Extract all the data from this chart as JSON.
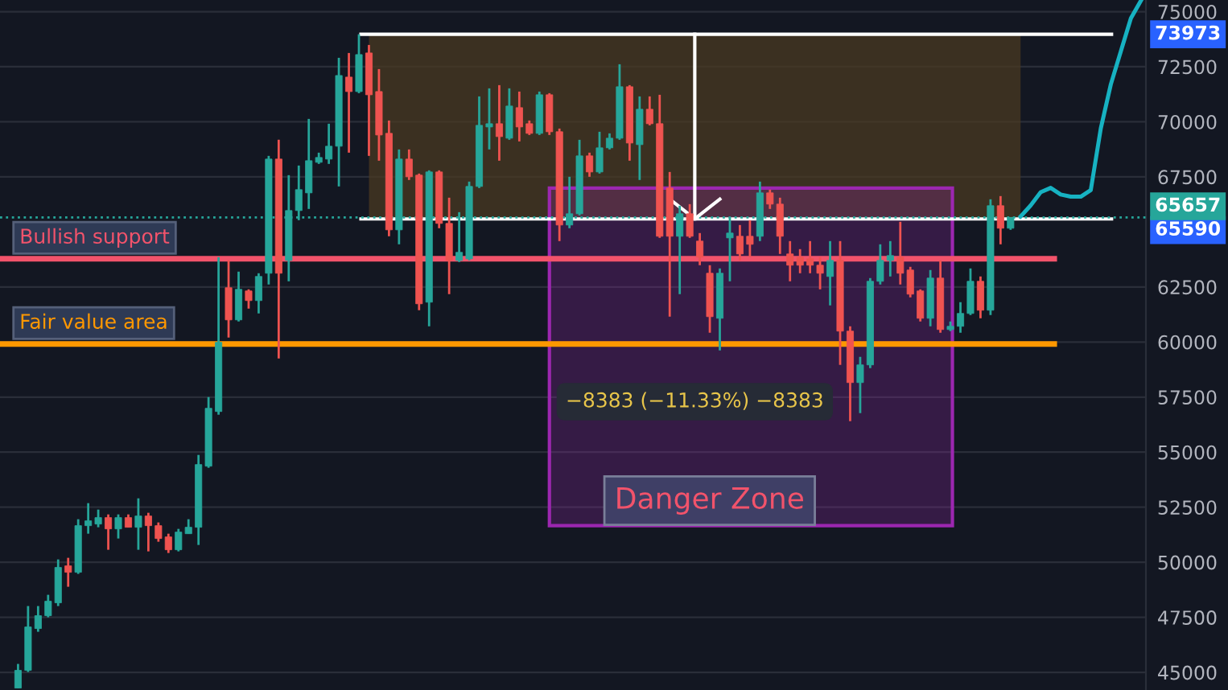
{
  "chart_data": {
    "type": "candlestick",
    "categories": [
      null,
      null,
      null,
      null,
      null,
      null,
      null,
      null,
      null,
      null,
      null,
      null,
      null,
      null,
      null,
      null,
      null,
      null,
      null,
      null,
      null,
      null,
      null,
      null,
      null,
      null,
      null,
      null,
      null,
      null,
      null,
      null,
      null,
      null,
      null,
      null,
      null,
      null,
      null,
      null,
      null,
      null,
      null,
      null,
      null,
      null,
      null,
      null,
      null,
      null,
      null,
      null,
      null,
      null,
      null,
      null,
      null,
      null,
      null,
      null,
      null,
      null,
      null,
      null,
      null,
      null,
      null,
      null,
      null,
      null,
      null,
      null,
      null,
      null,
      null,
      null,
      null,
      null,
      null,
      null,
      null,
      null,
      null,
      null,
      null,
      null,
      null,
      null,
      null,
      null,
      null,
      null,
      null,
      null,
      null,
      null,
      null,
      null,
      null,
      null,
      null,
      null,
      null,
      null,
      null,
      null,
      null,
      null,
      null,
      null,
      null,
      null,
      null
    ],
    "ohlc": [
      [
        44289,
        45384,
        44289,
        45092
      ],
      [
        45092,
        48012,
        45019,
        47063
      ],
      [
        46990,
        48012,
        46844,
        47574
      ],
      [
        47574,
        48523,
        47501,
        48231
      ],
      [
        48158,
        50129,
        48012,
        49764
      ],
      [
        49837,
        50202,
        48888,
        49545
      ],
      [
        49545,
        51954,
        49472,
        51662
      ],
      [
        51662,
        52684,
        51297,
        51881
      ],
      [
        51735,
        52392,
        51589,
        52027
      ],
      [
        52027,
        52173,
        50567,
        51516
      ],
      [
        51516,
        52173,
        51078,
        52027
      ],
      [
        52027,
        52173,
        51589,
        51589
      ],
      [
        51589,
        52903,
        50567,
        52100
      ],
      [
        52100,
        52246,
        50494,
        51662
      ],
      [
        51662,
        51808,
        50932,
        51078
      ],
      [
        51151,
        51297,
        50421,
        50567
      ],
      [
        50567,
        51516,
        50494,
        51370
      ],
      [
        51297,
        51954,
        51297,
        51589
      ],
      [
        51589,
        54874,
        50786,
        54436
      ],
      [
        54363,
        57502,
        54290,
        56991
      ],
      [
        56845,
        63853,
        56699,
        59984
      ],
      [
        62466,
        63707,
        60203,
        61006
      ],
      [
        61006,
        63196,
        60933,
        62393
      ],
      [
        62320,
        62393,
        61517,
        61882
      ],
      [
        61882,
        63123,
        61298,
        62977
      ],
      [
        63123,
        68452,
        62612,
        68306
      ],
      [
        68306,
        69182,
        59254,
        63123
      ],
      [
        63707,
        67576,
        62758,
        65970
      ],
      [
        65970,
        68014,
        65532,
        66919
      ],
      [
        66773,
        70131,
        66043,
        68233
      ],
      [
        68160,
        68598,
        68087,
        68379
      ],
      [
        68306,
        69912,
        68087,
        68890
      ],
      [
        68890,
        72905,
        67065,
        72102
      ],
      [
        72029,
        73124,
        68598,
        71372
      ],
      [
        71372,
        73973,
        71299,
        73051
      ],
      [
        73124,
        73489,
        68452,
        71226
      ],
      [
        71372,
        72394,
        68233,
        69401
      ],
      [
        69474,
        70058,
        64802,
        65094
      ],
      [
        65094,
        68744,
        64437,
        68306
      ],
      [
        68306,
        68744,
        67357,
        67503
      ],
      [
        67576,
        67649,
        61444,
        61736
      ],
      [
        61809,
        67795,
        60714,
        67722
      ],
      [
        67722,
        67795,
        65167,
        65386
      ],
      [
        65386,
        66554,
        62174,
        63707
      ],
      [
        63707,
        65897,
        63634,
        64072
      ],
      [
        63780,
        67284,
        63707,
        67065
      ],
      [
        67065,
        71153,
        66992,
        69839
      ],
      [
        69766,
        71518,
        68744,
        69912
      ],
      [
        69912,
        71664,
        68233,
        69328
      ],
      [
        69255,
        71518,
        69182,
        70715
      ],
      [
        70642,
        71372,
        69109,
        69766
      ],
      [
        69912,
        70058,
        69401,
        69474
      ],
      [
        69474,
        71372,
        69401,
        71226
      ],
      [
        71226,
        71299,
        69401,
        69547
      ],
      [
        69547,
        69693,
        64583,
        65313
      ],
      [
        65313,
        67503,
        65167,
        65824
      ],
      [
        65824,
        69182,
        65751,
        68452
      ],
      [
        68452,
        68598,
        67503,
        67722
      ],
      [
        67722,
        69547,
        67649,
        68817
      ],
      [
        68817,
        69474,
        68744,
        69255
      ],
      [
        69255,
        72613,
        69182,
        71591
      ],
      [
        71591,
        71664,
        68233,
        69036
      ],
      [
        68963,
        71153,
        67357,
        70569
      ],
      [
        70569,
        71153,
        69839,
        69912
      ],
      [
        69912,
        71226,
        64729,
        64802
      ],
      [
        66992,
        67722,
        61152,
        64802
      ],
      [
        64802,
        66189,
        62174,
        65824
      ],
      [
        65824,
        66262,
        64729,
        64802
      ],
      [
        64583,
        64948,
        63488,
        63853
      ],
      [
        63123,
        63488,
        60422,
        61152
      ],
      [
        61079,
        63342,
        59619,
        63123
      ],
      [
        64729,
        65678,
        62758,
        64948
      ],
      [
        64802,
        65313,
        63707,
        63999
      ],
      [
        64802,
        65532,
        63853,
        64437
      ],
      [
        64802,
        67284,
        64583,
        66773
      ],
      [
        66773,
        66919,
        66043,
        66262
      ],
      [
        66262,
        66554,
        63999,
        64802
      ],
      [
        63999,
        64583,
        62758,
        63488
      ],
      [
        63853,
        64218,
        63123,
        63488
      ],
      [
        63780,
        64583,
        63123,
        63488
      ],
      [
        63488,
        63853,
        62393,
        63123
      ],
      [
        62977,
        64583,
        61663,
        63707
      ],
      [
        63707,
        64583,
        58962,
        60495
      ],
      [
        60495,
        60714,
        56407,
        58159
      ],
      [
        58159,
        59327,
        56772,
        58962
      ],
      [
        58962,
        62904,
        58816,
        62758
      ],
      [
        62758,
        64437,
        62612,
        63707
      ],
      [
        63707,
        64583,
        62977,
        63926
      ],
      [
        63853,
        65459,
        62612,
        63123
      ],
      [
        63269,
        63415,
        62028,
        62174
      ],
      [
        62320,
        62393,
        60933,
        61079
      ],
      [
        61079,
        63269,
        60714,
        62904
      ],
      [
        62904,
        63707,
        60422,
        60568
      ],
      [
        60568,
        60933,
        60495,
        60714
      ],
      [
        60714,
        61809,
        60422,
        61298
      ],
      [
        61298,
        63342,
        61225,
        62758
      ],
      [
        62758,
        62977,
        61079,
        61444
      ],
      [
        61444,
        66481,
        61225,
        66189
      ],
      [
        66189,
        66627,
        64437,
        65167
      ],
      [
        65167,
        65657,
        65094,
        65657
      ],
      null,
      null,
      null,
      null,
      null,
      null,
      null,
      null,
      null,
      null,
      null,
      null,
      null
    ],
    "series": [
      {
        "type": "line",
        "color": "#17b2c2",
        "values": [
          null,
          null,
          null,
          null,
          null,
          null,
          null,
          null,
          null,
          null,
          null,
          null,
          null,
          null,
          null,
          null,
          null,
          null,
          null,
          null,
          null,
          null,
          null,
          null,
          null,
          null,
          null,
          null,
          null,
          null,
          null,
          null,
          null,
          null,
          null,
          null,
          null,
          null,
          null,
          null,
          null,
          null,
          null,
          null,
          null,
          null,
          null,
          null,
          null,
          null,
          null,
          null,
          null,
          null,
          null,
          null,
          null,
          null,
          null,
          null,
          null,
          null,
          null,
          null,
          null,
          null,
          null,
          null,
          null,
          null,
          null,
          null,
          null,
          null,
          null,
          null,
          null,
          null,
          null,
          null,
          null,
          null,
          null,
          null,
          null,
          null,
          null,
          null,
          null,
          null,
          null,
          null,
          null,
          null,
          null,
          null,
          null,
          null,
          null,
          null,
          65700,
          66200,
          66800,
          67000,
          66700,
          66600,
          66600,
          66900,
          69700,
          71700,
          73200,
          74700,
          75500
        ]
      }
    ],
    "ylim": [
      44200,
      75530
    ],
    "yticks": [
      45000,
      47500,
      50000,
      52500,
      55000,
      57500,
      60000,
      62500,
      67500,
      70000,
      72500,
      75000
    ],
    "tick_labels": "y",
    "grid": "y",
    "ref_lines": [
      {
        "axis": "y",
        "value": 63780,
        "label": "Bullish support",
        "color": "#f2536b"
      },
      {
        "axis": "y",
        "value": 59911,
        "label": "Fair value area",
        "color": "#ff9800"
      },
      {
        "axis": "y",
        "value": 73973,
        "label": "73973",
        "color": "#ffffff"
      },
      {
        "axis": "y",
        "value": 65590,
        "label": "65590",
        "color": "#ffffff"
      },
      {
        "axis": "y",
        "value": 65657,
        "label": "65657",
        "color": "#26a69a",
        "line_style": "dotted"
      }
    ],
    "bands": [
      {
        "axis": "y",
        "from": 65590,
        "to": 73973,
        "color": "#4a3a22"
      },
      {
        "axis": "y",
        "from": 51662,
        "to": 66992,
        "label": "Danger Zone",
        "color": "#9c27b0"
      }
    ],
    "annotations": [
      "−8383 (−11.33%) −8383"
    ]
  }
}
